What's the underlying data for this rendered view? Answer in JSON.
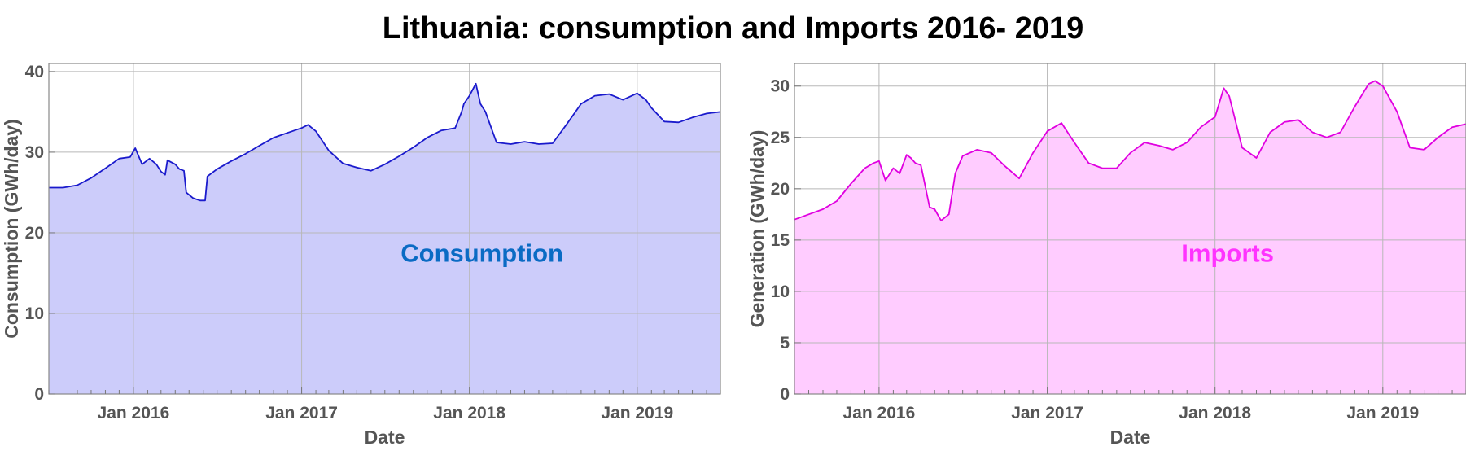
{
  "title": "Lithuania: consumption and Imports 2016- 2019",
  "chart_data": [
    {
      "type": "area",
      "xlabel": "Date",
      "ylabel": "Consumption (GWh/day)",
      "annotation": "Consumption",
      "color": "#1a1acc",
      "fill": "#ccccfa",
      "annotation_color": "#0a6bc4",
      "xlim": [
        "2015-07-01",
        "2019-07-01"
      ],
      "ylim": [
        0,
        41
      ],
      "x_ticks": [
        "2016-01-01",
        "2017-01-01",
        "2018-01-01",
        "2019-01-01"
      ],
      "x_tick_labels": [
        "Jan 2016",
        "Jan 2017",
        "Jan 2018",
        "Jan 2019"
      ],
      "y_ticks": [
        "0",
        "10",
        "20",
        "30",
        "40"
      ],
      "grid": true,
      "series": [
        {
          "x": [
            "2015-07-01",
            "2015-08-01",
            "2015-09-01",
            "2015-10-01",
            "2015-11-01",
            "2015-12-01",
            "2015-12-25",
            "2016-01-05",
            "2016-01-20",
            "2016-02-05",
            "2016-02-20",
            "2016-03-01",
            "2016-03-10",
            "2016-03-15",
            "2016-04-01",
            "2016-04-10",
            "2016-04-20",
            "2016-04-25",
            "2016-05-10",
            "2016-05-25",
            "2016-06-05",
            "2016-06-10",
            "2016-07-01",
            "2016-08-01",
            "2016-09-01",
            "2016-10-01",
            "2016-11-01",
            "2016-12-01",
            "2017-01-01",
            "2017-01-15",
            "2017-02-01",
            "2017-03-01",
            "2017-04-01",
            "2017-05-01",
            "2017-06-01",
            "2017-07-01",
            "2017-08-01",
            "2017-09-01",
            "2017-10-01",
            "2017-11-01",
            "2017-12-01",
            "2017-12-15",
            "2017-12-20",
            "2018-01-01",
            "2018-01-15",
            "2018-01-25",
            "2018-02-05",
            "2018-03-01",
            "2018-04-01",
            "2018-05-01",
            "2018-06-01",
            "2018-07-01",
            "2018-08-01",
            "2018-09-01",
            "2018-10-01",
            "2018-11-01",
            "2018-12-01",
            "2019-01-01",
            "2019-01-20",
            "2019-02-01",
            "2019-03-01",
            "2019-04-01",
            "2019-05-01",
            "2019-06-01",
            "2019-07-01"
          ],
          "y": [
            25.6,
            25.6,
            25.9,
            26.8,
            28.0,
            29.2,
            29.4,
            30.5,
            28.5,
            29.2,
            28.5,
            27.6,
            27.2,
            29.0,
            28.5,
            27.9,
            27.7,
            25.0,
            24.3,
            24.0,
            24.0,
            27.0,
            27.9,
            28.9,
            29.8,
            30.8,
            31.8,
            32.4,
            33.0,
            33.4,
            32.6,
            30.2,
            28.6,
            28.1,
            27.7,
            28.5,
            29.5,
            30.6,
            31.8,
            32.7,
            33.0,
            35.0,
            36.0,
            37.0,
            38.5,
            36.0,
            35.0,
            31.2,
            31.0,
            31.3,
            31.0,
            31.1,
            33.5,
            36.0,
            37.0,
            37.2,
            36.5,
            37.3,
            36.5,
            35.5,
            33.8,
            33.7,
            34.3,
            34.8,
            35.0
          ]
        }
      ]
    },
    {
      "type": "area",
      "xlabel": "Date",
      "ylabel": "Generation (GWh/day)",
      "annotation": "Imports",
      "color": "#e000e0",
      "fill": "#ffccff",
      "annotation_color": "#ff33ff",
      "xlim": [
        "2015-07-01",
        "2019-07-01"
      ],
      "ylim": [
        0,
        32.2
      ],
      "x_ticks": [
        "2016-01-01",
        "2017-01-01",
        "2018-01-01",
        "2019-01-01"
      ],
      "x_tick_labels": [
        "Jan 2016",
        "Jan 2017",
        "Jan 2018",
        "Jan 2019"
      ],
      "y_ticks": [
        "0",
        "5",
        "10",
        "15",
        "20",
        "25",
        "30"
      ],
      "grid": true,
      "series": [
        {
          "x": [
            "2015-07-01",
            "2015-08-01",
            "2015-09-01",
            "2015-10-01",
            "2015-11-01",
            "2015-12-01",
            "2015-12-20",
            "2016-01-01",
            "2016-01-15",
            "2016-02-01",
            "2016-02-15",
            "2016-03-01",
            "2016-03-10",
            "2016-03-20",
            "2016-04-01",
            "2016-04-20",
            "2016-05-01",
            "2016-05-15",
            "2016-06-01",
            "2016-06-15",
            "2016-07-01",
            "2016-08-01",
            "2016-09-01",
            "2016-10-01",
            "2016-11-01",
            "2016-12-01",
            "2017-01-01",
            "2017-02-01",
            "2017-03-01",
            "2017-04-01",
            "2017-05-01",
            "2017-06-01",
            "2017-07-01",
            "2017-08-01",
            "2017-09-01",
            "2017-10-01",
            "2017-11-01",
            "2017-12-01",
            "2018-01-01",
            "2018-01-20",
            "2018-02-01",
            "2018-03-01",
            "2018-04-01",
            "2018-05-01",
            "2018-06-01",
            "2018-07-01",
            "2018-08-01",
            "2018-09-01",
            "2018-10-01",
            "2018-11-01",
            "2018-12-01",
            "2018-12-15",
            "2019-01-01",
            "2019-02-01",
            "2019-03-01",
            "2019-04-01",
            "2019-05-01",
            "2019-06-01",
            "2019-07-01"
          ],
          "y": [
            17.0,
            17.5,
            18.0,
            18.8,
            20.5,
            22.0,
            22.5,
            22.7,
            20.8,
            22.0,
            21.5,
            23.3,
            23.0,
            22.5,
            22.3,
            18.2,
            18.0,
            16.9,
            17.5,
            21.5,
            23.2,
            23.8,
            23.5,
            22.2,
            21.0,
            23.5,
            25.6,
            26.4,
            24.5,
            22.5,
            22.0,
            22.0,
            23.5,
            24.5,
            24.2,
            23.8,
            24.5,
            26.0,
            27.0,
            29.8,
            29.0,
            24.0,
            23.0,
            25.5,
            26.5,
            26.7,
            25.5,
            25.0,
            25.5,
            28.0,
            30.2,
            30.5,
            30.0,
            27.5,
            24.0,
            23.8,
            25.0,
            26.0,
            26.3
          ]
        }
      ]
    }
  ]
}
